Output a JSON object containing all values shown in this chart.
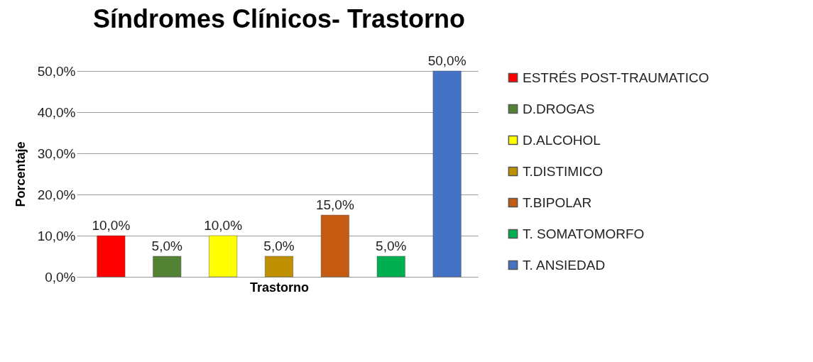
{
  "chart_data": {
    "type": "bar",
    "title": "Síndromes Clínicos- Trastorno",
    "xlabel": "Trastorno",
    "ylabel": "Porcentaje",
    "categories": [
      null,
      null,
      null,
      null,
      null,
      null,
      null
    ],
    "series": [
      {
        "name": "ESTRÉS POST-TRAUMATICO",
        "color": "#ff0000",
        "values": [
          10,
          null,
          null,
          null,
          null,
          null,
          null
        ],
        "value_labels": [
          "10,0%",
          null,
          null,
          null,
          null,
          null,
          null
        ]
      },
      {
        "name": "D.DROGAS",
        "color": "#548235",
        "values": [
          null,
          5,
          null,
          null,
          null,
          null,
          null
        ],
        "value_labels": [
          null,
          "5,0%",
          null,
          null,
          null,
          null,
          null
        ]
      },
      {
        "name": "D.ALCOHOL",
        "color": "#ffff00",
        "values": [
          null,
          null,
          10,
          null,
          null,
          null,
          null
        ],
        "value_labels": [
          null,
          null,
          "10,0%",
          null,
          null,
          null,
          null
        ]
      },
      {
        "name": "T.DISTIMICO",
        "color": "#bf9000",
        "values": [
          null,
          null,
          null,
          5,
          null,
          null,
          null
        ],
        "value_labels": [
          null,
          null,
          null,
          "5,0%",
          null,
          null,
          null
        ]
      },
      {
        "name": "T.BIPOLAR",
        "color": "#c55a11",
        "values": [
          null,
          null,
          null,
          null,
          15,
          null,
          null
        ],
        "value_labels": [
          null,
          null,
          null,
          null,
          "15,0%",
          null,
          null
        ]
      },
      {
        "name": "T. SOMATOMORFO",
        "color": "#00b050",
        "values": [
          null,
          null,
          null,
          null,
          null,
          5,
          null
        ],
        "value_labels": [
          null,
          null,
          null,
          null,
          null,
          "5,0%",
          null
        ]
      },
      {
        "name": "T. ANSIEDAD",
        "color": "#4472c4",
        "values": [
          null,
          null,
          null,
          null,
          null,
          null,
          50
        ],
        "value_labels": [
          null,
          null,
          null,
          null,
          null,
          null,
          "50,0%"
        ]
      }
    ],
    "ylim": [
      0,
      50
    ],
    "yticks": [
      {
        "value": 0,
        "label": "0,0%"
      },
      {
        "value": 10,
        "label": "10,0%"
      },
      {
        "value": 20,
        "label": "20,0%"
      },
      {
        "value": 30,
        "label": "30,0%"
      },
      {
        "value": 40,
        "label": "40,0%"
      },
      {
        "value": 50,
        "label": "50,0%"
      }
    ],
    "grid": "y",
    "legend": "right"
  }
}
